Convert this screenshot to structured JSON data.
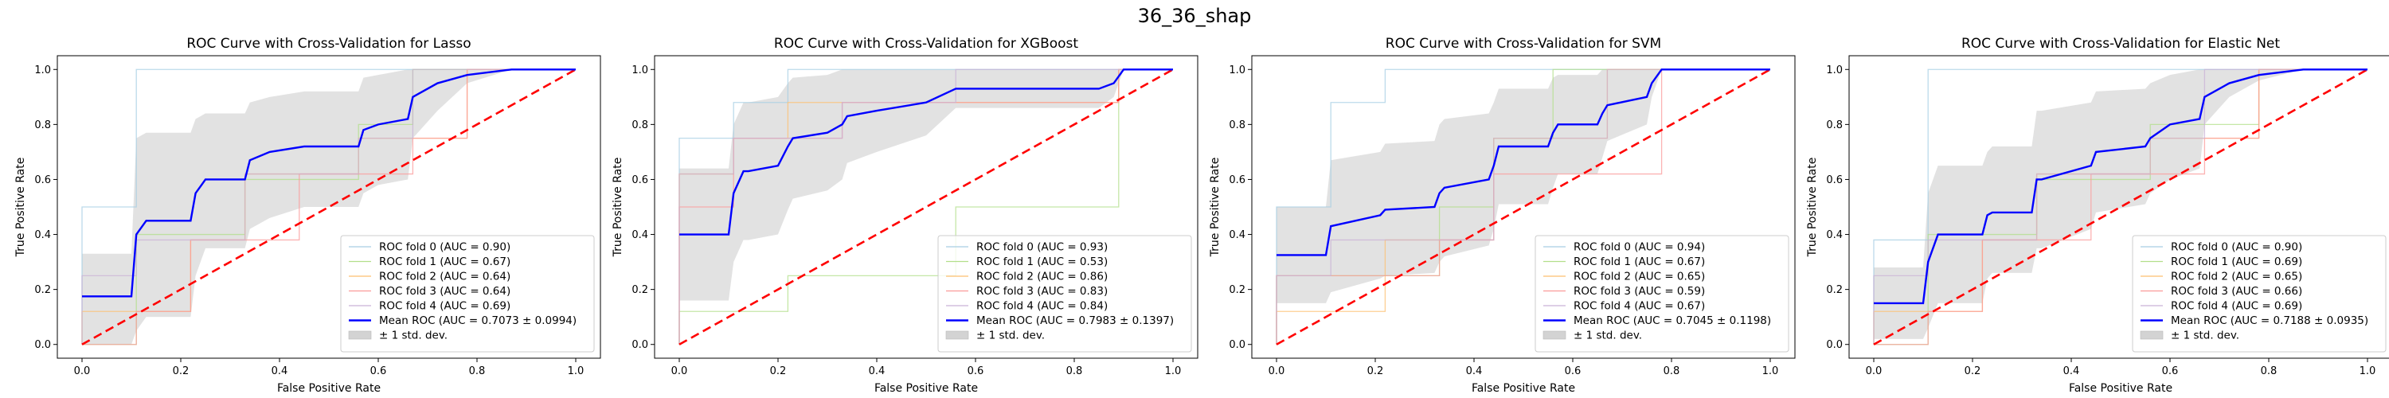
{
  "figure": {
    "suptitle": "36_36_shap"
  },
  "colors": {
    "fold_colors": [
      "#a6cee3",
      "#b2df8a",
      "#fdbf6f",
      "#fb9a99",
      "#cab2d6"
    ],
    "mean": "#0000ff",
    "chance": "#ff0000",
    "band": "#d3d3d3"
  },
  "chart_data": [
    {
      "type": "line",
      "title": "ROC Curve with Cross-Validation for Lasso",
      "xlabel": "False Positive Rate",
      "ylabel": "True Positive Rate",
      "xlim": [
        -0.05,
        1.05
      ],
      "ylim": [
        -0.05,
        1.05
      ],
      "xticks": [
        "0.0",
        "0.2",
        "0.4",
        "0.6",
        "0.8",
        "1.0"
      ],
      "yticks": [
        "0.0",
        "0.2",
        "0.4",
        "0.6",
        "0.8",
        "1.0"
      ],
      "legend_position": "lower right",
      "chance_line": {
        "x": [
          0,
          1
        ],
        "y": [
          0,
          1
        ]
      },
      "folds": [
        {
          "label": "ROC fold 0 (AUC = 0.90)",
          "x": [
            0,
            0,
            0.11,
            0.11,
            1
          ],
          "y": [
            0,
            0.5,
            0.5,
            1.0,
            1.0
          ]
        },
        {
          "label": "ROC fold 1 (AUC = 0.67)",
          "x": [
            0,
            0.11,
            0.11,
            0.33,
            0.33,
            0.56,
            0.56,
            0.67,
            0.67,
            1
          ],
          "y": [
            0,
            0,
            0.4,
            0.4,
            0.6,
            0.6,
            0.8,
            0.8,
            1.0,
            1.0
          ]
        },
        {
          "label": "ROC fold 2 (AUC = 0.64)",
          "x": [
            0,
            0,
            0.22,
            0.22,
            0.33,
            0.33,
            0.56,
            0.56,
            0.78,
            0.78,
            1
          ],
          "y": [
            0,
            0.12,
            0.12,
            0.38,
            0.38,
            0.62,
            0.62,
            0.75,
            0.75,
            1.0,
            1.0
          ]
        },
        {
          "label": "ROC fold 3 (AUC = 0.64)",
          "x": [
            0,
            0.11,
            0.11,
            0.22,
            0.22,
            0.44,
            0.44,
            0.67,
            0.67,
            0.78,
            0.78,
            1
          ],
          "y": [
            0,
            0,
            0.12,
            0.12,
            0.38,
            0.38,
            0.62,
            0.62,
            0.75,
            0.75,
            1.0,
            1.0
          ]
        },
        {
          "label": "ROC fold 4 (AUC = 0.69)",
          "x": [
            0,
            0,
            0.11,
            0.11,
            0.33,
            0.33,
            0.56,
            0.56,
            0.67,
            0.67,
            1
          ],
          "y": [
            0,
            0.25,
            0.25,
            0.38,
            0.38,
            0.62,
            0.62,
            0.75,
            0.75,
            1.0,
            1.0
          ]
        }
      ],
      "mean": {
        "label": "Mean ROC (AUC = 0.7073 ± 0.0994)",
        "x": [
          0,
          0.1,
          0.11,
          0.13,
          0.22,
          0.23,
          0.25,
          0.33,
          0.34,
          0.38,
          0.45,
          0.56,
          0.57,
          0.6,
          0.66,
          0.67,
          0.72,
          0.78,
          0.87,
          1.0
        ],
        "y": [
          0.175,
          0.175,
          0.4,
          0.45,
          0.45,
          0.55,
          0.6,
          0.6,
          0.67,
          0.7,
          0.72,
          0.72,
          0.78,
          0.8,
          0.82,
          0.9,
          0.95,
          0.98,
          1.0,
          1.0
        ]
      },
      "band": {
        "label": "± 1 std. dev.",
        "x": [
          0,
          0.1,
          0.11,
          0.13,
          0.22,
          0.23,
          0.25,
          0.33,
          0.34,
          0.38,
          0.45,
          0.56,
          0.57,
          0.6,
          0.66,
          0.67,
          0.72,
          0.78,
          0.87,
          1.0
        ],
        "upper": [
          0.33,
          0.33,
          0.75,
          0.77,
          0.77,
          0.82,
          0.84,
          0.84,
          0.88,
          0.9,
          0.92,
          0.92,
          0.97,
          0.98,
          1.0,
          1.0,
          1.0,
          1.0,
          1.0,
          1.0
        ],
        "lower": [
          0.0,
          0.0,
          0.05,
          0.1,
          0.1,
          0.25,
          0.35,
          0.35,
          0.42,
          0.46,
          0.5,
          0.5,
          0.55,
          0.58,
          0.6,
          0.75,
          0.85,
          0.95,
          1.0,
          1.0
        ]
      }
    },
    {
      "type": "line",
      "title": "ROC Curve with Cross-Validation for XGBoost",
      "xlabel": "False Positive Rate",
      "ylabel": "True Positive Rate",
      "xlim": [
        -0.05,
        1.05
      ],
      "ylim": [
        -0.05,
        1.05
      ],
      "xticks": [
        "0.0",
        "0.2",
        "0.4",
        "0.6",
        "0.8",
        "1.0"
      ],
      "yticks": [
        "0.0",
        "0.2",
        "0.4",
        "0.6",
        "0.8",
        "1.0"
      ],
      "legend_position": "lower right",
      "chance_line": {
        "x": [
          0,
          1
        ],
        "y": [
          0,
          1
        ]
      },
      "folds": [
        {
          "label": "ROC fold 0 (AUC = 0.93)",
          "x": [
            0,
            0,
            0.11,
            0.11,
            0.22,
            0.22,
            1
          ],
          "y": [
            0,
            0.75,
            0.75,
            0.88,
            0.88,
            1.0,
            1.0
          ]
        },
        {
          "label": "ROC fold 1 (AUC = 0.53)",
          "x": [
            0,
            0,
            0.22,
            0.22,
            0.56,
            0.56,
            0.89,
            0.89,
            1
          ],
          "y": [
            0,
            0.12,
            0.12,
            0.25,
            0.25,
            0.5,
            0.5,
            1.0,
            1.0
          ]
        },
        {
          "label": "ROC fold 2 (AUC = 0.86)",
          "x": [
            0,
            0,
            0.11,
            0.11,
            0.22,
            0.22,
            0.89,
            0.89,
            1
          ],
          "y": [
            0,
            0.62,
            0.62,
            0.75,
            0.75,
            0.88,
            0.88,
            1.0,
            1.0
          ]
        },
        {
          "label": "ROC fold 3 (AUC = 0.83)",
          "x": [
            0,
            0,
            0.11,
            0.11,
            0.33,
            0.33,
            0.89,
            0.89,
            1
          ],
          "y": [
            0,
            0.5,
            0.5,
            0.75,
            0.75,
            0.88,
            0.88,
            1.0,
            1.0
          ]
        },
        {
          "label": "ROC fold 4 (AUC = 0.84)",
          "x": [
            0,
            0,
            0.11,
            0.11,
            0.33,
            0.33,
            0.56,
            0.56,
            1
          ],
          "y": [
            0,
            0.62,
            0.62,
            0.75,
            0.75,
            0.88,
            0.88,
            1.0,
            1.0
          ]
        }
      ],
      "mean": {
        "label": "Mean ROC (AUC = 0.7983 ± 0.1397)",
        "x": [
          0,
          0.1,
          0.11,
          0.13,
          0.14,
          0.2,
          0.22,
          0.23,
          0.3,
          0.33,
          0.34,
          0.4,
          0.5,
          0.56,
          0.6,
          0.85,
          0.88,
          0.9,
          1.0
        ],
        "y": [
          0.4,
          0.4,
          0.55,
          0.63,
          0.63,
          0.65,
          0.72,
          0.75,
          0.77,
          0.8,
          0.83,
          0.85,
          0.88,
          0.93,
          0.93,
          0.93,
          0.95,
          1.0,
          1.0
        ]
      },
      "band": {
        "label": "± 1 std. dev.",
        "x": [
          0,
          0.1,
          0.11,
          0.13,
          0.14,
          0.2,
          0.22,
          0.23,
          0.3,
          0.33,
          0.34,
          0.4,
          0.5,
          0.56,
          0.6,
          0.85,
          0.88,
          0.9,
          1.0
        ],
        "upper": [
          0.64,
          0.64,
          0.8,
          0.88,
          0.88,
          0.9,
          0.95,
          0.97,
          0.98,
          1.0,
          1.0,
          1.0,
          1.0,
          1.0,
          1.0,
          1.0,
          1.0,
          1.0,
          1.0
        ],
        "lower": [
          0.16,
          0.16,
          0.3,
          0.38,
          0.38,
          0.4,
          0.49,
          0.53,
          0.56,
          0.6,
          0.66,
          0.7,
          0.76,
          0.86,
          0.86,
          0.86,
          0.9,
          1.0,
          1.0
        ]
      }
    },
    {
      "type": "line",
      "title": "ROC Curve with Cross-Validation for SVM",
      "xlabel": "False Positive Rate",
      "ylabel": "True Positive Rate",
      "xlim": [
        -0.05,
        1.05
      ],
      "ylim": [
        -0.05,
        1.05
      ],
      "xticks": [
        "0.0",
        "0.2",
        "0.4",
        "0.6",
        "0.8",
        "1.0"
      ],
      "yticks": [
        "0.0",
        "0.2",
        "0.4",
        "0.6",
        "0.8",
        "1.0"
      ],
      "legend_position": "lower right",
      "chance_line": {
        "x": [
          0,
          1
        ],
        "y": [
          0,
          1
        ]
      },
      "folds": [
        {
          "label": "ROC fold 0 (AUC = 0.94)",
          "x": [
            0,
            0,
            0.11,
            0.11,
            0.22,
            0.22,
            1
          ],
          "y": [
            0,
            0.5,
            0.5,
            0.88,
            0.88,
            1.0,
            1.0
          ]
        },
        {
          "label": "ROC fold 1 (AUC = 0.67)",
          "x": [
            0,
            0,
            0.33,
            0.33,
            0.44,
            0.44,
            0.56,
            0.56,
            1
          ],
          "y": [
            0,
            0.25,
            0.25,
            0.5,
            0.5,
            0.75,
            0.75,
            1.0,
            1.0
          ]
        },
        {
          "label": "ROC fold 2 (AUC = 0.65)",
          "x": [
            0,
            0,
            0.22,
            0.22,
            0.44,
            0.44,
            0.67,
            0.67,
            1
          ],
          "y": [
            0,
            0.12,
            0.12,
            0.38,
            0.38,
            0.75,
            0.75,
            1.0,
            1.0
          ]
        },
        {
          "label": "ROC fold 3 (AUC = 0.59)",
          "x": [
            0,
            0,
            0.33,
            0.33,
            0.44,
            0.44,
            0.78,
            0.78,
            1
          ],
          "y": [
            0,
            0.25,
            0.25,
            0.38,
            0.38,
            0.62,
            0.62,
            1.0,
            1.0
          ]
        },
        {
          "label": "ROC fold 4 (AUC = 0.67)",
          "x": [
            0,
            0,
            0.11,
            0.11,
            0.44,
            0.44,
            0.67,
            0.67,
            1
          ],
          "y": [
            0,
            0.25,
            0.25,
            0.38,
            0.38,
            0.75,
            0.75,
            1.0,
            1.0
          ]
        }
      ],
      "mean": {
        "label": "Mean ROC (AUC = 0.7045 ± 0.1198)",
        "x": [
          0,
          0.1,
          0.11,
          0.21,
          0.22,
          0.32,
          0.33,
          0.34,
          0.43,
          0.44,
          0.45,
          0.55,
          0.56,
          0.57,
          0.65,
          0.66,
          0.67,
          0.75,
          0.76,
          0.78,
          1.0
        ],
        "y": [
          0.325,
          0.325,
          0.43,
          0.47,
          0.49,
          0.5,
          0.55,
          0.57,
          0.6,
          0.65,
          0.72,
          0.72,
          0.77,
          0.8,
          0.8,
          0.84,
          0.87,
          0.9,
          0.95,
          1.0,
          1.0
        ]
      },
      "band": {
        "label": "± 1 std. dev.",
        "x": [
          0,
          0.1,
          0.11,
          0.21,
          0.22,
          0.32,
          0.33,
          0.34,
          0.43,
          0.44,
          0.45,
          0.55,
          0.56,
          0.57,
          0.65,
          0.66,
          0.67,
          0.75,
          0.76,
          0.78,
          1.0
        ],
        "upper": [
          0.5,
          0.5,
          0.67,
          0.7,
          0.73,
          0.74,
          0.8,
          0.82,
          0.84,
          0.88,
          0.93,
          0.93,
          0.97,
          0.98,
          0.98,
          1.0,
          1.0,
          1.0,
          1.0,
          1.0,
          1.0
        ],
        "lower": [
          0.15,
          0.15,
          0.19,
          0.24,
          0.25,
          0.26,
          0.3,
          0.32,
          0.36,
          0.42,
          0.51,
          0.51,
          0.57,
          0.62,
          0.62,
          0.68,
          0.74,
          0.8,
          0.9,
          1.0,
          1.0
        ]
      }
    },
    {
      "type": "line",
      "title": "ROC Curve with Cross-Validation for Elastic Net",
      "xlabel": "False Positive Rate",
      "ylabel": "True Positive Rate",
      "xlim": [
        -0.05,
        1.05
      ],
      "ylim": [
        -0.05,
        1.05
      ],
      "xticks": [
        "0.0",
        "0.2",
        "0.4",
        "0.6",
        "0.8",
        "1.0"
      ],
      "yticks": [
        "0.0",
        "0.2",
        "0.4",
        "0.6",
        "0.8",
        "1.0"
      ],
      "legend_position": "lower right",
      "chance_line": {
        "x": [
          0,
          1
        ],
        "y": [
          0,
          1
        ]
      },
      "folds": [
        {
          "label": "ROC fold 0 (AUC = 0.90)",
          "x": [
            0,
            0,
            0.11,
            0.11,
            1
          ],
          "y": [
            0,
            0.38,
            0.38,
            1.0,
            1.0
          ]
        },
        {
          "label": "ROC fold 1 (AUC = 0.69)",
          "x": [
            0,
            0.11,
            0.11,
            0.33,
            0.33,
            0.56,
            0.56,
            0.78,
            0.78,
            1
          ],
          "y": [
            0,
            0,
            0.4,
            0.4,
            0.6,
            0.6,
            0.8,
            0.8,
            1.0,
            1.0
          ]
        },
        {
          "label": "ROC fold 2 (AUC = 0.65)",
          "x": [
            0,
            0,
            0.22,
            0.22,
            0.33,
            0.33,
            0.56,
            0.56,
            0.78,
            0.78,
            1
          ],
          "y": [
            0,
            0.12,
            0.12,
            0.38,
            0.38,
            0.62,
            0.62,
            0.75,
            0.75,
            1.0,
            1.0
          ]
        },
        {
          "label": "ROC fold 3 (AUC = 0.66)",
          "x": [
            0,
            0.11,
            0.11,
            0.22,
            0.22,
            0.44,
            0.44,
            0.67,
            0.67,
            0.78,
            0.78,
            1
          ],
          "y": [
            0,
            0,
            0.12,
            0.12,
            0.38,
            0.38,
            0.62,
            0.62,
            0.75,
            0.75,
            1.0,
            1.0
          ]
        },
        {
          "label": "ROC fold 4 (AUC = 0.69)",
          "x": [
            0,
            0,
            0.11,
            0.11,
            0.33,
            0.33,
            0.56,
            0.56,
            0.67,
            0.67,
            1
          ],
          "y": [
            0,
            0.25,
            0.25,
            0.38,
            0.38,
            0.62,
            0.62,
            0.75,
            0.75,
            1.0,
            1.0
          ]
        }
      ],
      "mean": {
        "label": "Mean ROC (AUC = 0.7188 ± 0.0935)",
        "x": [
          0,
          0.1,
          0.11,
          0.13,
          0.22,
          0.23,
          0.24,
          0.32,
          0.33,
          0.34,
          0.44,
          0.45,
          0.55,
          0.56,
          0.6,
          0.66,
          0.67,
          0.72,
          0.78,
          0.87,
          1.0
        ],
        "y": [
          0.15,
          0.15,
          0.3,
          0.4,
          0.4,
          0.47,
          0.48,
          0.48,
          0.6,
          0.6,
          0.65,
          0.7,
          0.72,
          0.75,
          0.8,
          0.82,
          0.9,
          0.95,
          0.98,
          1.0,
          1.0
        ]
      },
      "band": {
        "label": "± 1 std. dev.",
        "x": [
          0,
          0.1,
          0.11,
          0.13,
          0.22,
          0.23,
          0.24,
          0.32,
          0.33,
          0.34,
          0.44,
          0.45,
          0.55,
          0.56,
          0.6,
          0.66,
          0.67,
          0.72,
          0.78,
          0.87,
          1.0
        ],
        "upper": [
          0.28,
          0.28,
          0.55,
          0.65,
          0.65,
          0.7,
          0.72,
          0.72,
          0.85,
          0.85,
          0.88,
          0.92,
          0.93,
          0.95,
          0.98,
          1.0,
          1.0,
          1.0,
          1.0,
          1.0,
          1.0
        ],
        "lower": [
          0.02,
          0.02,
          0.06,
          0.15,
          0.15,
          0.24,
          0.26,
          0.26,
          0.35,
          0.35,
          0.42,
          0.48,
          0.51,
          0.55,
          0.6,
          0.64,
          0.8,
          0.9,
          0.96,
          1.0,
          1.0
        ]
      }
    }
  ]
}
